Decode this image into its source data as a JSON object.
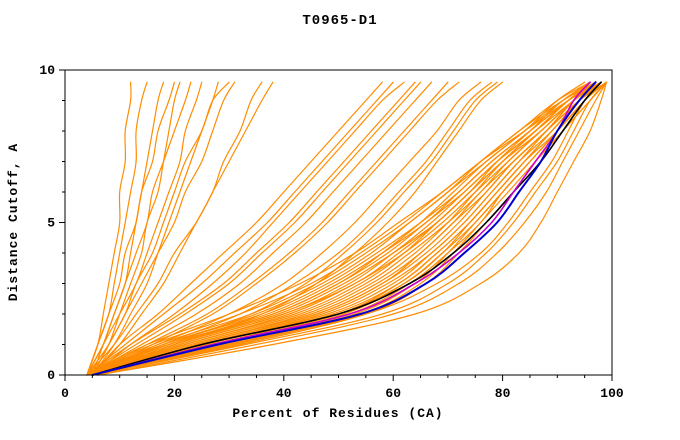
{
  "page": {
    "title": "T0965-D1"
  },
  "chart_data": {
    "type": "line",
    "title": "T0965-D1",
    "xlabel": "Percent of Residues (CA)",
    "ylabel": "Distance Cutoff, A",
    "xlim": [
      0,
      100
    ],
    "ylim": [
      0,
      10
    ],
    "x_ticks": [
      0,
      20,
      40,
      60,
      80,
      100
    ],
    "y_ticks": [
      0,
      5,
      10
    ],
    "x_minor_step": 5,
    "y_minor_step": 1,
    "grid": false,
    "legend": "none",
    "cutoffs": [
      0,
      1,
      2,
      3,
      4,
      5,
      6,
      7,
      8,
      9,
      9.6
    ],
    "colors": {
      "models": "#ff8c00",
      "black": "#000000",
      "blue": "#0000cd",
      "magenta": "#cc00cc",
      "frame": "#000000"
    },
    "series": {
      "models": [
        [
          5,
          20,
          38,
          50,
          58,
          65,
          71,
          77,
          84,
          90,
          95
        ],
        [
          5,
          24,
          44,
          56,
          64,
          70,
          75,
          80,
          86,
          92,
          97
        ],
        [
          6,
          28,
          50,
          62,
          69,
          74,
          79,
          84,
          89,
          94,
          98
        ],
        [
          4,
          18,
          35,
          47,
          56,
          63,
          70,
          76,
          83,
          90,
          96
        ],
        [
          5,
          30,
          52,
          63,
          70,
          76,
          80,
          85,
          90,
          95,
          99
        ],
        [
          5,
          22,
          42,
          54,
          62,
          68,
          74,
          79,
          85,
          91,
          96
        ],
        [
          6,
          26,
          48,
          60,
          67,
          73,
          78,
          83,
          88,
          93,
          97
        ],
        [
          4,
          16,
          32,
          45,
          54,
          62,
          69,
          76,
          83,
          91,
          97
        ],
        [
          5,
          32,
          55,
          66,
          72,
          77,
          82,
          86,
          91,
          96,
          99
        ],
        [
          5,
          21,
          40,
          52,
          60,
          67,
          73,
          79,
          86,
          92,
          97
        ],
        [
          6,
          27,
          49,
          61,
          68,
          74,
          79,
          84,
          90,
          95,
          98
        ],
        [
          4,
          19,
          37,
          49,
          58,
          66,
          72,
          78,
          85,
          92,
          97
        ],
        [
          5,
          29,
          51,
          62,
          69,
          75,
          80,
          85,
          90,
          94,
          98
        ],
        [
          5,
          23,
          43,
          55,
          63,
          70,
          76,
          81,
          87,
          93,
          98
        ],
        [
          6,
          25,
          46,
          58,
          66,
          72,
          77,
          82,
          88,
          94,
          98
        ],
        [
          4,
          17,
          34,
          46,
          55,
          63,
          70,
          77,
          84,
          91,
          96
        ],
        [
          5,
          31,
          54,
          65,
          71,
          76,
          81,
          86,
          91,
          95,
          99
        ],
        [
          5,
          20,
          39,
          51,
          60,
          68,
          74,
          80,
          87,
          93,
          98
        ],
        [
          6,
          24,
          45,
          57,
          65,
          71,
          77,
          82,
          88,
          93,
          97
        ],
        [
          4,
          15,
          30,
          43,
          53,
          61,
          69,
          76,
          84,
          92,
          98
        ],
        [
          5,
          28,
          50,
          61,
          68,
          74,
          79,
          84,
          89,
          94,
          97
        ],
        [
          5,
          22,
          41,
          53,
          62,
          69,
          75,
          81,
          87,
          93,
          97
        ],
        [
          6,
          26,
          47,
          59,
          67,
          73,
          78,
          83,
          89,
          94,
          99
        ],
        [
          4,
          18,
          36,
          48,
          57,
          65,
          72,
          78,
          85,
          92,
          97
        ],
        [
          5,
          30,
          53,
          64,
          70,
          75,
          80,
          85,
          90,
          95,
          98
        ],
        [
          5,
          21,
          40,
          53,
          61,
          68,
          74,
          80,
          86,
          92,
          96
        ],
        [
          6,
          25,
          46,
          58,
          65,
          71,
          76,
          82,
          88,
          94,
          99
        ],
        [
          4,
          19,
          38,
          50,
          59,
          66,
          73,
          79,
          86,
          93,
          98
        ],
        [
          6,
          38,
          64,
          76,
          83,
          87,
          90,
          93,
          96,
          98,
          99
        ],
        [
          6,
          35,
          60,
          72,
          79,
          84,
          88,
          91,
          94,
          97,
          99
        ],
        [
          5,
          33,
          58,
          70,
          77,
          82,
          86,
          90,
          93,
          96,
          99
        ],
        [
          6,
          30,
          55,
          68,
          76,
          81,
          85,
          89,
          92,
          95,
          98
        ],
        [
          5,
          18,
          32,
          42,
          50,
          56,
          61,
          66,
          70,
          74,
          78
        ],
        [
          4,
          20,
          36,
          46,
          53,
          59,
          64,
          68,
          72,
          76,
          80
        ],
        [
          5,
          17,
          30,
          40,
          47,
          53,
          58,
          63,
          68,
          72,
          76
        ],
        [
          4,
          19,
          34,
          44,
          51,
          57,
          62,
          67,
          71,
          75,
          79
        ],
        [
          5,
          12,
          20,
          27,
          33,
          38,
          43,
          48,
          53,
          58,
          62
        ],
        [
          4,
          14,
          24,
          32,
          38,
          44,
          49,
          54,
          59,
          64,
          67
        ],
        [
          5,
          16,
          27,
          35,
          42,
          48,
          53,
          58,
          63,
          68,
          72
        ],
        [
          4,
          11,
          18,
          25,
          31,
          37,
          42,
          47,
          52,
          57,
          60
        ],
        [
          5,
          15,
          26,
          34,
          41,
          47,
          52,
          57,
          62,
          67,
          70
        ],
        [
          4,
          13,
          22,
          30,
          36,
          42,
          47,
          52,
          57,
          62,
          65
        ],
        [
          5,
          10,
          17,
          23,
          29,
          35,
          40,
          45,
          50,
          55,
          58
        ],
        [
          4,
          12,
          21,
          29,
          35,
          41,
          46,
          51,
          56,
          61,
          64
        ],
        [
          4,
          6,
          7,
          8,
          9,
          10,
          10,
          11,
          11,
          12,
          12
        ],
        [
          4,
          6,
          8,
          9,
          10,
          11,
          12,
          13,
          13,
          14,
          15
        ],
        [
          4,
          7,
          9,
          11,
          12,
          13,
          14,
          15,
          16,
          17,
          18
        ],
        [
          5,
          8,
          10,
          12,
          14,
          15,
          17,
          18,
          19,
          20,
          21
        ],
        [
          4,
          7,
          10,
          13,
          15,
          17,
          19,
          21,
          22,
          24,
          25
        ],
        [
          5,
          9,
          12,
          15,
          17,
          19,
          21,
          23,
          25,
          27,
          28
        ],
        [
          4,
          8,
          11,
          14,
          17,
          20,
          22,
          25,
          27,
          29,
          31
        ],
        [
          5,
          10,
          14,
          18,
          21,
          24,
          27,
          29,
          32,
          34,
          36
        ],
        [
          4,
          9,
          13,
          17,
          20,
          24,
          27,
          30,
          33,
          36,
          38
        ],
        [
          5,
          8,
          11,
          13,
          16,
          18,
          20,
          22,
          25,
          27,
          30
        ],
        [
          4,
          6,
          8,
          10,
          11,
          13,
          14,
          16,
          17,
          19,
          20
        ],
        [
          5,
          7,
          9,
          11,
          13,
          15,
          16,
          18,
          20,
          22,
          23
        ]
      ],
      "black": [
        5,
        25,
        50,
        63,
        71,
        77,
        82,
        87,
        91,
        95,
        98
      ],
      "magenta": [
        5,
        27,
        52,
        64,
        72,
        78,
        82,
        86,
        90,
        93,
        96
      ],
      "blue": [
        5,
        28,
        54,
        66,
        73,
        79,
        83,
        87,
        90,
        94,
        97
      ]
    }
  }
}
